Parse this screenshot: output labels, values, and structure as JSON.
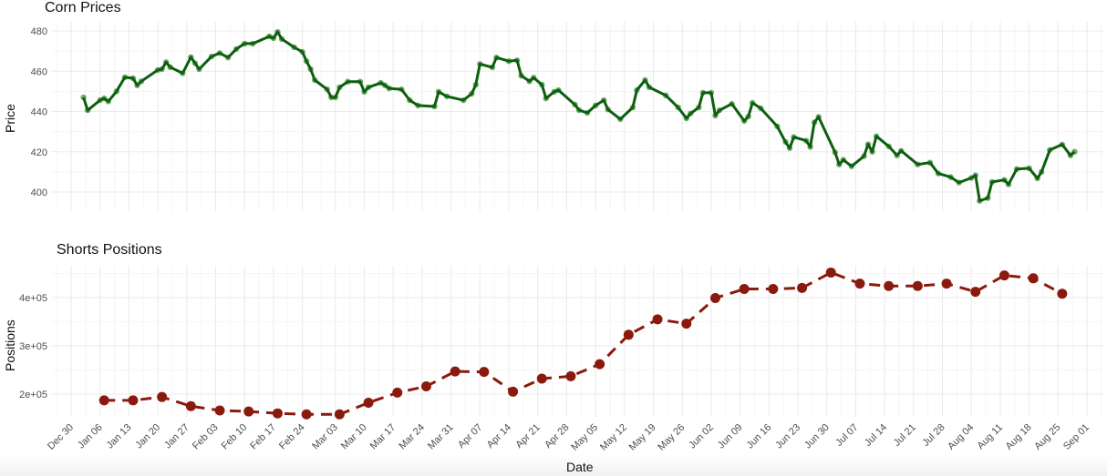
{
  "chart_data": [
    {
      "type": "line",
      "title": "Corn Prices",
      "xlabel": "",
      "ylabel": "Price",
      "ylim": [
        393,
        482
      ],
      "yticks": [
        400,
        420,
        440,
        460,
        480
      ],
      "grid": true,
      "line_color": "#0d5e0d",
      "marker_color": "#3f8f3f",
      "line_style": "solid",
      "markers": true,
      "series": [
        {
          "name": "Price",
          "points": [
            [
              "2024-01-02",
              447.0
            ],
            [
              "2024-01-03",
              440.6
            ],
            [
              "2024-01-06",
              445.6
            ],
            [
              "2024-01-07",
              446.5
            ],
            [
              "2024-01-08",
              445.0
            ],
            [
              "2024-01-10",
              450.0
            ],
            [
              "2024-01-12",
              457.0
            ],
            [
              "2024-01-14",
              456.5
            ],
            [
              "2024-01-15",
              453.0
            ],
            [
              "2024-01-16",
              455.0
            ],
            [
              "2024-01-20",
              460.6
            ],
            [
              "2024-01-21",
              461.0
            ],
            [
              "2024-01-22",
              464.5
            ],
            [
              "2024-01-23",
              462.0
            ],
            [
              "2024-01-26",
              459.0
            ],
            [
              "2024-01-28",
              467.0
            ],
            [
              "2024-01-29",
              464.0
            ],
            [
              "2024-01-30",
              461.0
            ],
            [
              "2024-02-02",
              467.3
            ],
            [
              "2024-02-04",
              469.0
            ],
            [
              "2024-02-06",
              466.8
            ],
            [
              "2024-02-08",
              471.0
            ],
            [
              "2024-02-10",
              473.7
            ],
            [
              "2024-02-12",
              473.7
            ],
            [
              "2024-02-16",
              477.3
            ],
            [
              "2024-02-17",
              476.4
            ],
            [
              "2024-02-18",
              479.5
            ],
            [
              "2024-02-19",
              476.0
            ],
            [
              "2024-02-22",
              471.9
            ],
            [
              "2024-02-24",
              469.6
            ],
            [
              "2024-02-25",
              465.0
            ],
            [
              "2024-02-26",
              461.0
            ],
            [
              "2024-02-27",
              455.6
            ],
            [
              "2024-03-01",
              451.0
            ],
            [
              "2024-03-02",
              447.0
            ],
            [
              "2024-03-03",
              447.0
            ],
            [
              "2024-03-04",
              452.0
            ],
            [
              "2024-03-06",
              454.8
            ],
            [
              "2024-03-09",
              454.8
            ],
            [
              "2024-03-10",
              449.8
            ],
            [
              "2024-03-11",
              452.0
            ],
            [
              "2024-03-14",
              454.2
            ],
            [
              "2024-03-15",
              453.0
            ],
            [
              "2024-03-16",
              451.5
            ],
            [
              "2024-03-19",
              451.0
            ],
            [
              "2024-03-21",
              445.6
            ],
            [
              "2024-03-23",
              443.0
            ],
            [
              "2024-03-27",
              442.5
            ],
            [
              "2024-03-28",
              449.8
            ],
            [
              "2024-03-30",
              447.5
            ],
            [
              "2024-04-03",
              445.6
            ],
            [
              "2024-04-05",
              448.8
            ],
            [
              "2024-04-06",
              453.3
            ],
            [
              "2024-04-07",
              463.6
            ],
            [
              "2024-04-10",
              461.9
            ],
            [
              "2024-04-11",
              466.8
            ],
            [
              "2024-04-14",
              465.0
            ],
            [
              "2024-04-16",
              465.4
            ],
            [
              "2024-04-17",
              457.8
            ],
            [
              "2024-04-19",
              455.0
            ],
            [
              "2024-04-20",
              456.8
            ],
            [
              "2024-04-22",
              453.3
            ],
            [
              "2024-04-23",
              446.5
            ],
            [
              "2024-04-25",
              449.8
            ],
            [
              "2024-04-26",
              450.6
            ],
            [
              "2024-04-30",
              443.4
            ],
            [
              "2024-05-01",
              440.7
            ],
            [
              "2024-05-03",
              439.3
            ],
            [
              "2024-05-05",
              443.0
            ],
            [
              "2024-05-07",
              445.6
            ],
            [
              "2024-05-08",
              441.0
            ],
            [
              "2024-05-11",
              436.2
            ],
            [
              "2024-05-14",
              442.0
            ],
            [
              "2024-05-15",
              450.6
            ],
            [
              "2024-05-17",
              455.6
            ],
            [
              "2024-05-18",
              452.0
            ],
            [
              "2024-05-22",
              448.0
            ],
            [
              "2024-05-25",
              442.0
            ],
            [
              "2024-05-27",
              436.6
            ],
            [
              "2024-05-28",
              439.0
            ],
            [
              "2024-05-30",
              442.0
            ],
            [
              "2024-05-31",
              449.3
            ],
            [
              "2024-06-02",
              449.3
            ],
            [
              "2024-06-03",
              438.0
            ],
            [
              "2024-06-04",
              440.6
            ],
            [
              "2024-06-07",
              443.8
            ],
            [
              "2024-06-10",
              435.3
            ],
            [
              "2024-06-11",
              437.5
            ],
            [
              "2024-06-12",
              444.3
            ],
            [
              "2024-06-14",
              441.6
            ],
            [
              "2024-06-18",
              432.6
            ],
            [
              "2024-06-20",
              424.9
            ],
            [
              "2024-06-21",
              421.8
            ],
            [
              "2024-06-22",
              427.3
            ],
            [
              "2024-06-25",
              425.5
            ],
            [
              "2024-06-26",
              422.4
            ],
            [
              "2024-06-27",
              434.6
            ],
            [
              "2024-06-28",
              437.3
            ],
            [
              "2024-07-02",
              419.7
            ],
            [
              "2024-07-03",
              413.7
            ],
            [
              "2024-07-04",
              416.0
            ],
            [
              "2024-07-06",
              412.8
            ],
            [
              "2024-07-09",
              417.8
            ],
            [
              "2024-07-10",
              423.7
            ],
            [
              "2024-07-11",
              420.0
            ],
            [
              "2024-07-12",
              427.7
            ],
            [
              "2024-07-15",
              422.7
            ],
            [
              "2024-07-17",
              418.2
            ],
            [
              "2024-07-18",
              420.5
            ],
            [
              "2024-07-22",
              413.7
            ],
            [
              "2024-07-25",
              414.6
            ],
            [
              "2024-07-27",
              409.2
            ],
            [
              "2024-07-30",
              407.4
            ],
            [
              "2024-08-01",
              404.7
            ],
            [
              "2024-08-04",
              407.0
            ],
            [
              "2024-08-05",
              408.3
            ],
            [
              "2024-08-06",
              395.6
            ],
            [
              "2024-08-08",
              397.0
            ],
            [
              "2024-08-09",
              405.0
            ],
            [
              "2024-08-12",
              406.0
            ],
            [
              "2024-08-13",
              403.8
            ],
            [
              "2024-08-15",
              411.4
            ],
            [
              "2024-08-18",
              411.8
            ],
            [
              "2024-08-20",
              406.8
            ],
            [
              "2024-08-21",
              410.0
            ],
            [
              "2024-08-23",
              420.9
            ],
            [
              "2024-08-26",
              423.6
            ],
            [
              "2024-08-28",
              418.2
            ],
            [
              "2024-08-29",
              420.0
            ]
          ]
        }
      ]
    },
    {
      "type": "line",
      "title": "Shorts Positions",
      "xlabel": "Date",
      "ylabel": "Positions",
      "ylim": [
        148000,
        462000
      ],
      "yticks": [
        200000,
        300000,
        400000
      ],
      "ytick_labels": [
        "2e+05",
        "3e+05",
        "4e+05"
      ],
      "grid": true,
      "line_color": "#8b1a0e",
      "marker_color": "#8b1a0e",
      "line_style": "dashed",
      "markers": true,
      "series": [
        {
          "name": "Positions",
          "points": [
            [
              "2024-01-07",
              187000
            ],
            [
              "2024-01-14",
              187000
            ],
            [
              "2024-01-21",
              194000
            ],
            [
              "2024-01-28",
              175000
            ],
            [
              "2024-02-04",
              166000
            ],
            [
              "2024-02-11",
              164000
            ],
            [
              "2024-02-18",
              160000
            ],
            [
              "2024-02-25",
              158000
            ],
            [
              "2024-03-04",
              158000
            ],
            [
              "2024-03-11",
              182000
            ],
            [
              "2024-03-18",
              203000
            ],
            [
              "2024-03-25",
              216000
            ],
            [
              "2024-04-01",
              247000
            ],
            [
              "2024-04-08",
              246000
            ],
            [
              "2024-04-15",
              205000
            ],
            [
              "2024-04-22",
              232000
            ],
            [
              "2024-04-29",
              237000
            ],
            [
              "2024-05-06",
              262000
            ],
            [
              "2024-05-13",
              323000
            ],
            [
              "2024-05-20",
              355000
            ],
            [
              "2024-05-27",
              346000
            ],
            [
              "2024-06-03",
              399000
            ],
            [
              "2024-06-10",
              418000
            ],
            [
              "2024-06-17",
              418000
            ],
            [
              "2024-06-24",
              420000
            ],
            [
              "2024-07-01",
              452000
            ],
            [
              "2024-07-08",
              429000
            ],
            [
              "2024-07-15",
              424000
            ],
            [
              "2024-07-22",
              424000
            ],
            [
              "2024-07-29",
              429000
            ],
            [
              "2024-08-05",
              412000
            ],
            [
              "2024-08-12",
              446000
            ],
            [
              "2024-08-19",
              440000
            ],
            [
              "2024-08-26",
              408000
            ]
          ]
        }
      ]
    }
  ],
  "x_axis": {
    "title": "Date",
    "start": "2023-12-26",
    "end": "2024-09-05",
    "ticks": [
      [
        "2023-12-30",
        "Dec 30"
      ],
      [
        "2024-01-06",
        "Jan 06"
      ],
      [
        "2024-01-13",
        "Jan 13"
      ],
      [
        "2024-01-20",
        "Jan 20"
      ],
      [
        "2024-01-27",
        "Jan 27"
      ],
      [
        "2024-02-03",
        "Feb 03"
      ],
      [
        "2024-02-10",
        "Feb 10"
      ],
      [
        "2024-02-17",
        "Feb 17"
      ],
      [
        "2024-02-24",
        "Feb 24"
      ],
      [
        "2024-03-03",
        "Mar 03"
      ],
      [
        "2024-03-10",
        "Mar 10"
      ],
      [
        "2024-03-17",
        "Mar 17"
      ],
      [
        "2024-03-24",
        "Mar 24"
      ],
      [
        "2024-03-31",
        "Mar 31"
      ],
      [
        "2024-04-07",
        "Apr 07"
      ],
      [
        "2024-04-14",
        "Apr 14"
      ],
      [
        "2024-04-21",
        "Apr 21"
      ],
      [
        "2024-04-28",
        "Apr 28"
      ],
      [
        "2024-05-05",
        "May 05"
      ],
      [
        "2024-05-12",
        "May 12"
      ],
      [
        "2024-05-19",
        "May 19"
      ],
      [
        "2024-05-26",
        "May 26"
      ],
      [
        "2024-06-02",
        "Jun 02"
      ],
      [
        "2024-06-09",
        "Jun 09"
      ],
      [
        "2024-06-16",
        "Jun 16"
      ],
      [
        "2024-06-23",
        "Jun 23"
      ],
      [
        "2024-06-30",
        "Jun 30"
      ],
      [
        "2024-07-07",
        "Jul 07"
      ],
      [
        "2024-07-14",
        "Jul 14"
      ],
      [
        "2024-07-21",
        "Jul 21"
      ],
      [
        "2024-07-28",
        "Jul 28"
      ],
      [
        "2024-08-04",
        "Aug 04"
      ],
      [
        "2024-08-11",
        "Aug 11"
      ],
      [
        "2024-08-18",
        "Aug 18"
      ],
      [
        "2024-08-25",
        "Aug 25"
      ],
      [
        "2024-09-01",
        "Sep 01"
      ]
    ]
  },
  "labels": {
    "top_title": "Corn Prices",
    "top_ylabel": "Price",
    "bottom_title": "Shorts Positions",
    "bottom_ylabel": "Positions",
    "xlabel": "Date"
  }
}
